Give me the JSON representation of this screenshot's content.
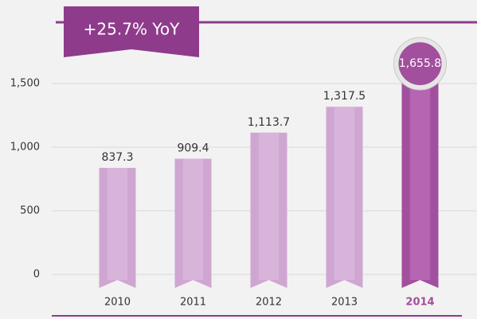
{
  "chart_data": {
    "type": "bar",
    "annotation": "+25.7% YoY",
    "categories": [
      "2010",
      "2011",
      "2012",
      "2013",
      "2014"
    ],
    "values": [
      837.3,
      909.4,
      1113.7,
      1317.5,
      1655.8
    ],
    "value_labels": [
      "837.3",
      "909.4",
      "1,113.7",
      "1,317.5",
      "1,655.8"
    ],
    "color": "#cfa6d2",
    "highlight_color": "#a24f9e",
    "highlight_index": 4,
    "ylim": [
      0,
      1800
    ],
    "yticks": [
      0,
      500,
      {
        "value": 1000,
        "label": "1,000"
      },
      {
        "value": 1500,
        "label": "1,500"
      }
    ],
    "grid": true
  }
}
